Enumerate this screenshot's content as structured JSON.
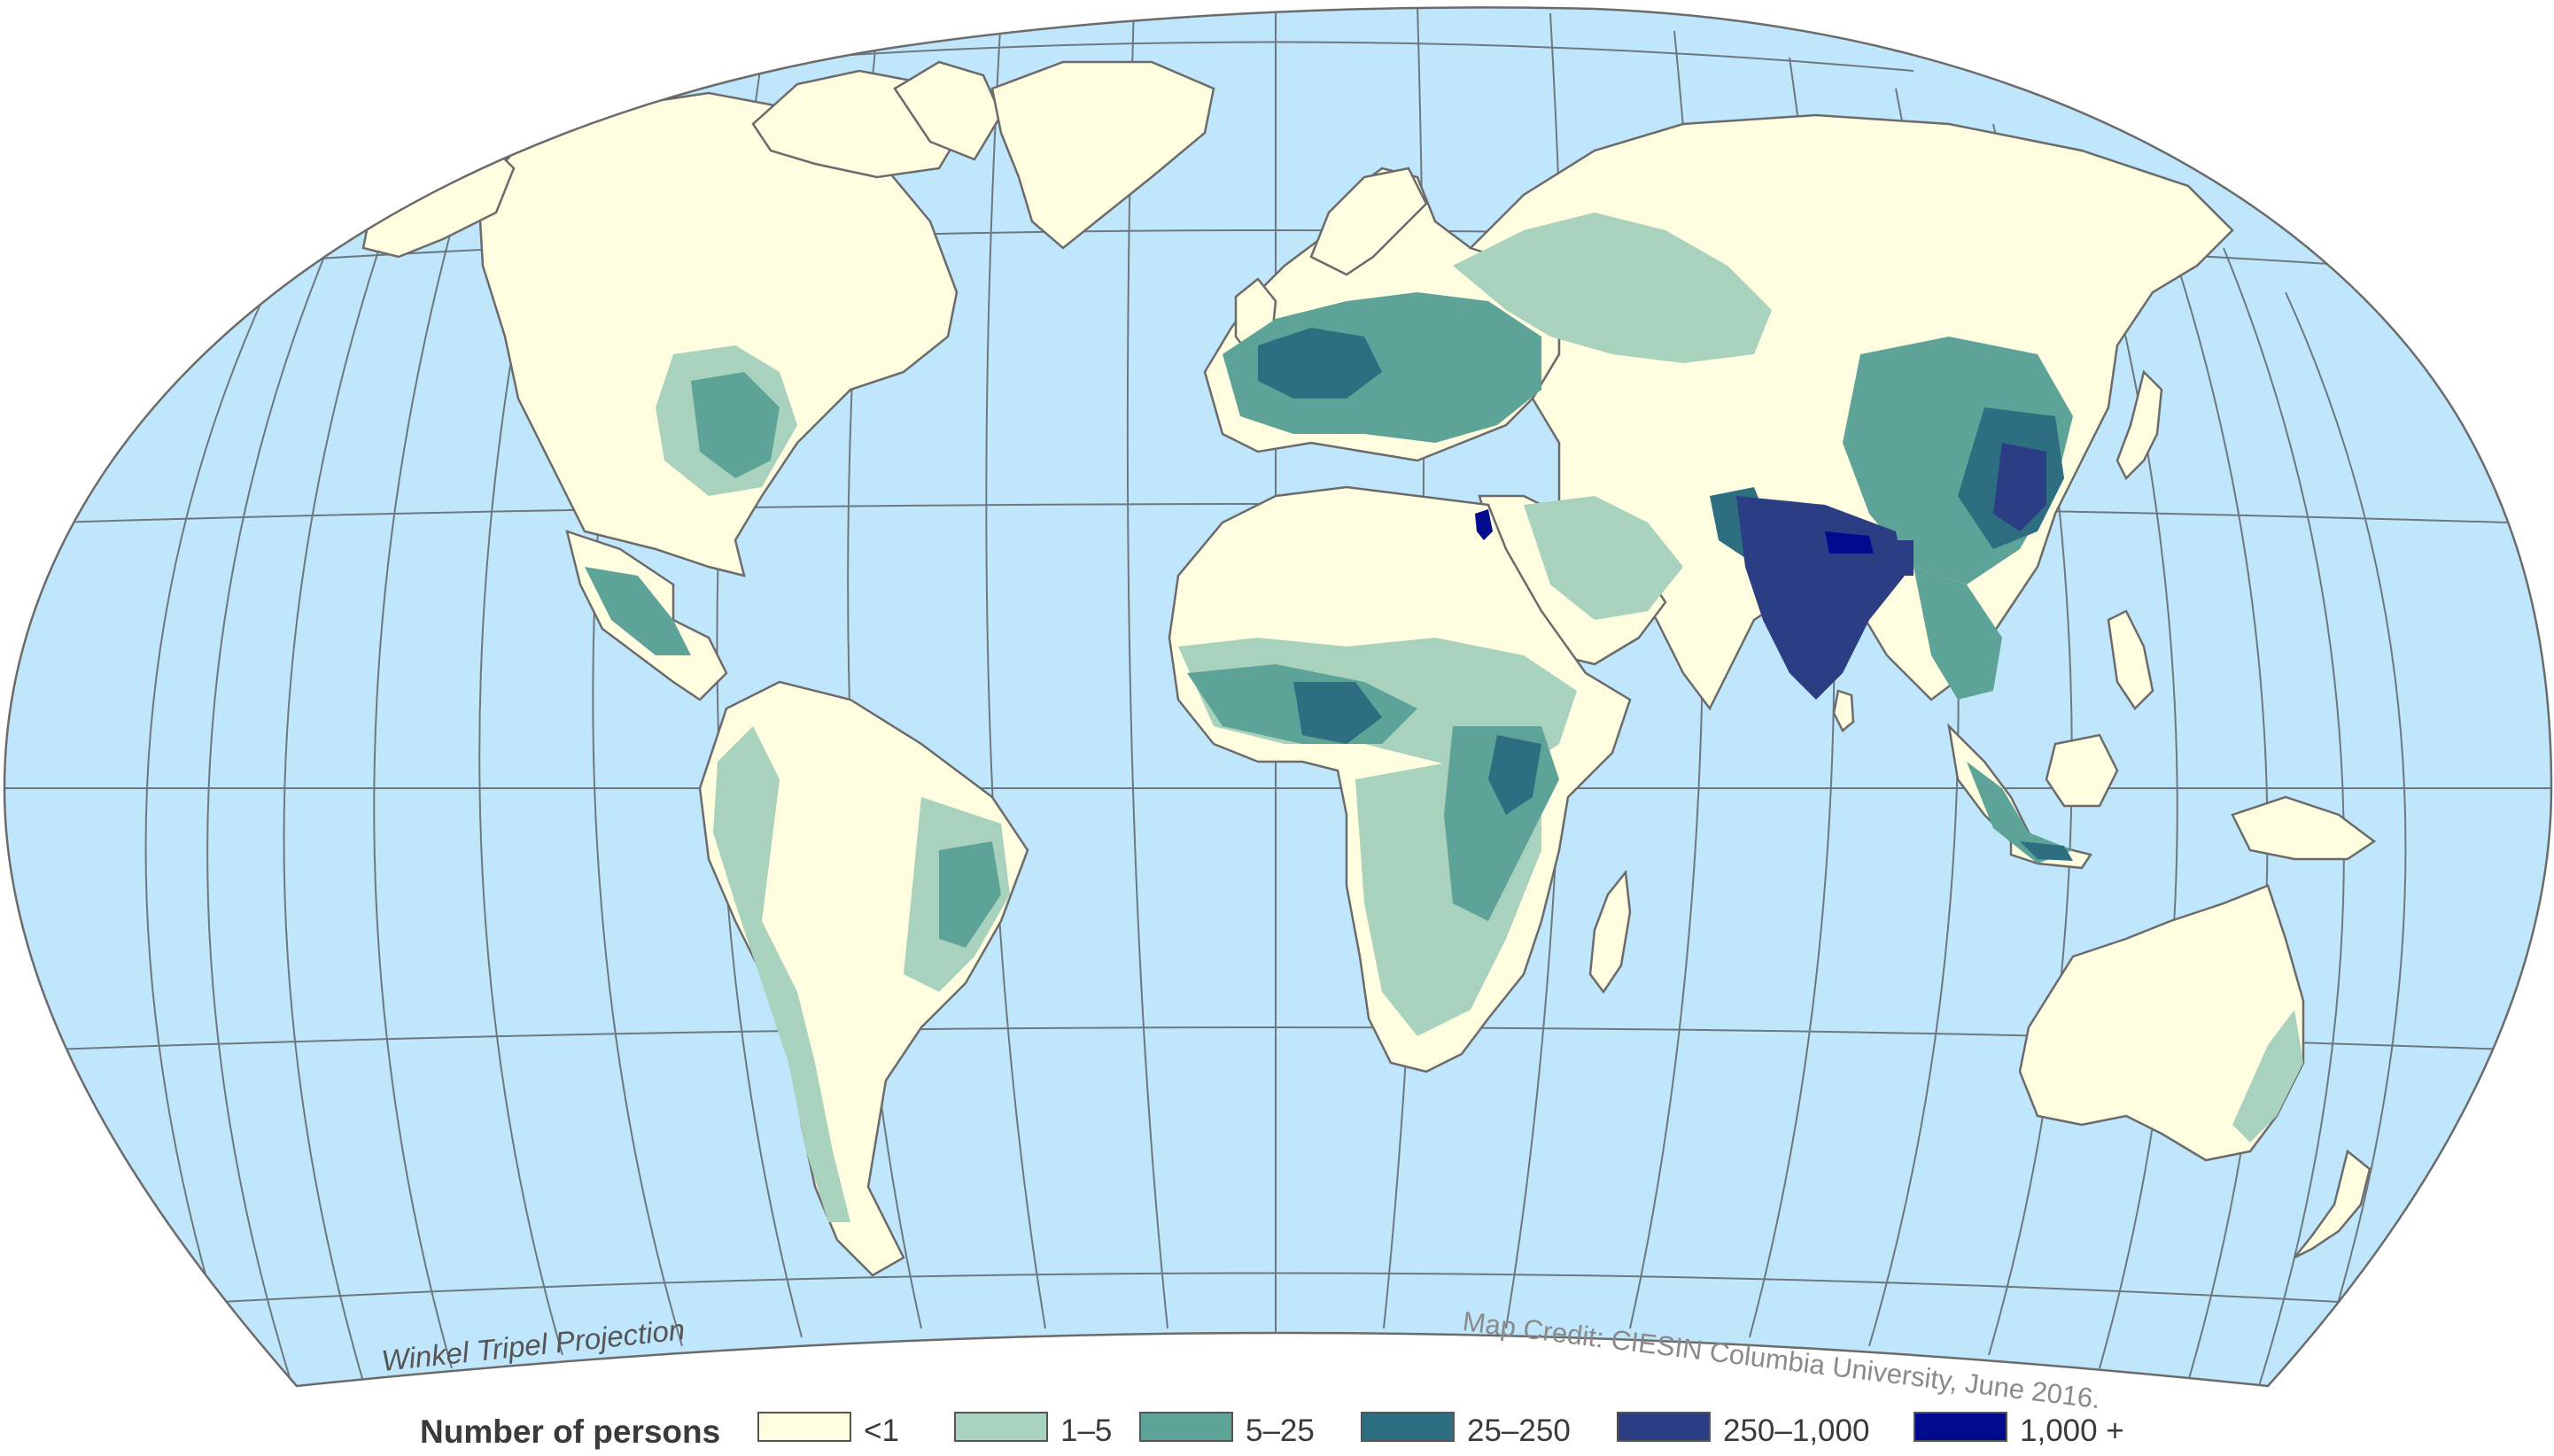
{
  "map": {
    "projection_label": "Winkel Tripel Projection",
    "credit": "Map Credit: CIESIN Columbia University, June 2016.",
    "colors": {
      "ocean": "#bfe6fb",
      "graticule": "#6c7880",
      "outline": "#6b6b6b",
      "land_low": "#fefde0",
      "land_1_5": "#a8d2bd",
      "land_5_25": "#5ea397",
      "land_25_250": "#2d6f80",
      "land_250_1000": "#2b3d83",
      "land_1000": "#000b8e"
    }
  },
  "legend": {
    "title": "Number of persons",
    "items": [
      {
        "label": "<1",
        "color": "#fefde0"
      },
      {
        "label": "1–5",
        "color": "#a8d2bd"
      },
      {
        "label": "5–25",
        "color": "#5ea397"
      },
      {
        "label": "25–250",
        "color": "#2d6f80"
      },
      {
        "label": "250–1,000",
        "color": "#2b3d83"
      },
      {
        "label": "1,000 +",
        "color": "#000b8e"
      }
    ]
  }
}
